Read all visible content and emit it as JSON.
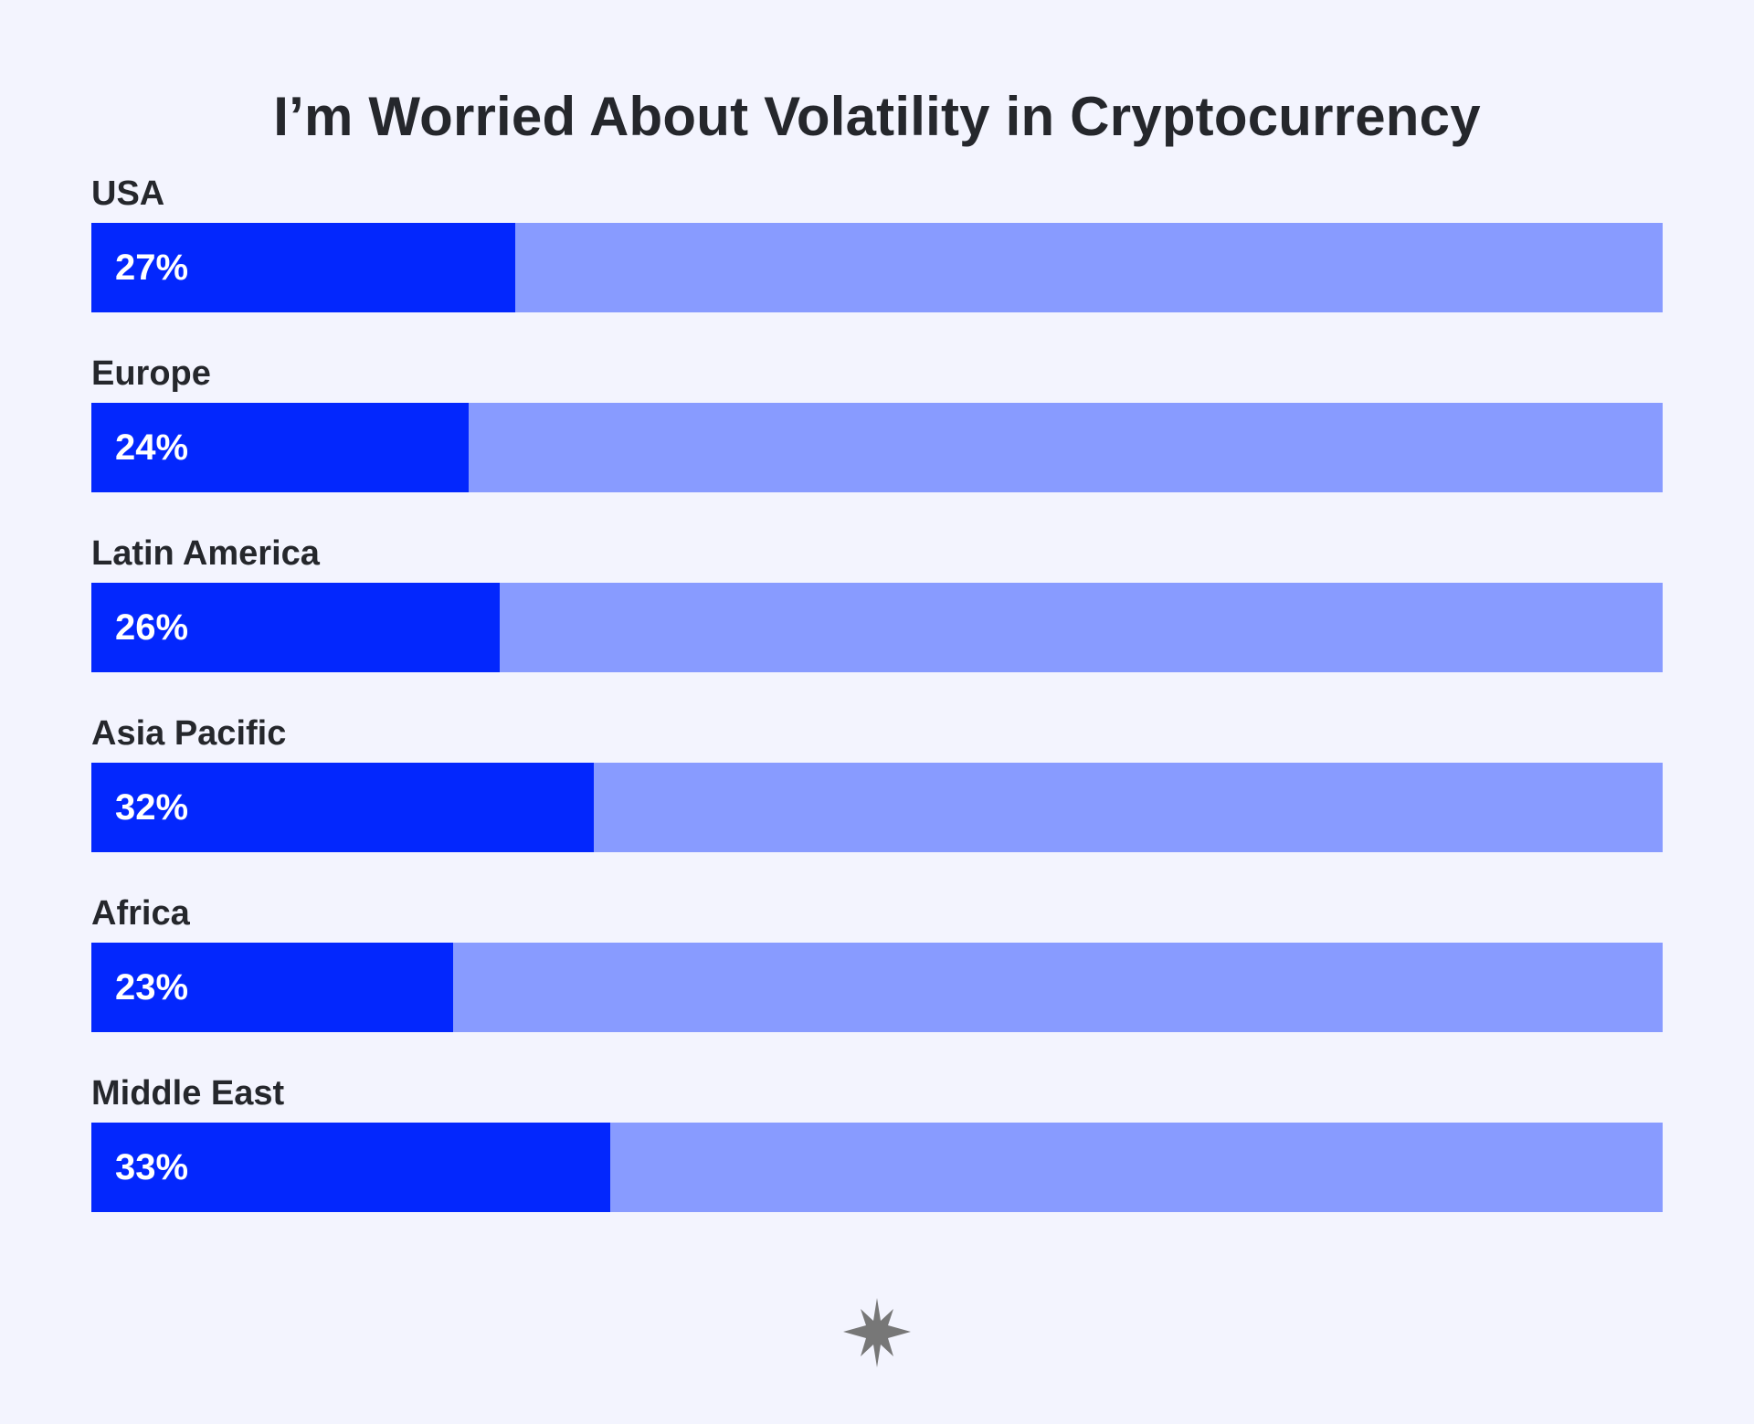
{
  "chart_data": {
    "type": "bar",
    "orientation": "horizontal",
    "title": "I’m Worried About Volatility in Cryptocurrency",
    "categories": [
      "USA",
      "Europe",
      "Latin America",
      "Asia Pacific",
      "Africa",
      "Middle East"
    ],
    "values": [
      27,
      24,
      26,
      32,
      23,
      33
    ],
    "value_labels": [
      "27%",
      "24%",
      "26%",
      "32%",
      "23%",
      "33%"
    ],
    "xlim": [
      0,
      100
    ],
    "unit": "%",
    "grid": false,
    "legend": "none",
    "colors": {
      "bar": "#0327fd",
      "track": "#889bff",
      "background": "#f3f4fe",
      "text": "#25272c",
      "value_text": "#ffffff",
      "logo": "#777777"
    }
  },
  "footer": {
    "logo_icon": "star-burst-icon"
  }
}
